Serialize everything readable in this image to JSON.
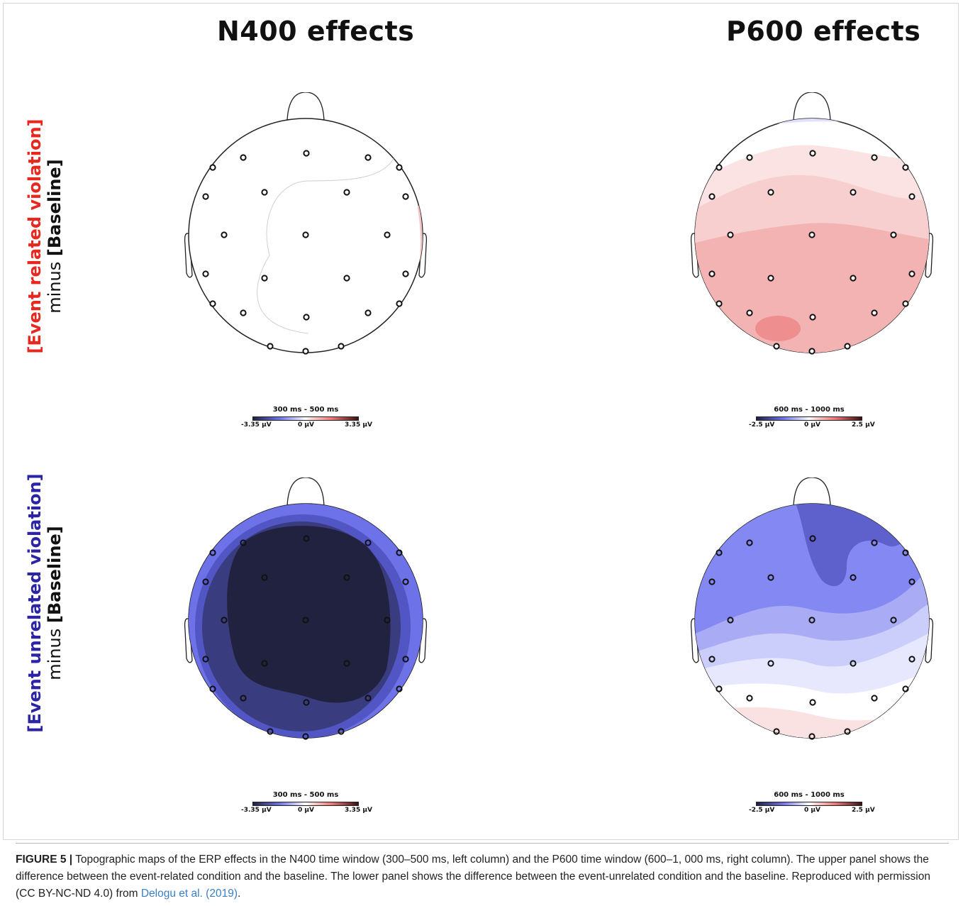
{
  "figure": {
    "columns": [
      {
        "title": "N400 effects"
      },
      {
        "title": "P600 effects"
      }
    ],
    "rows": [
      {
        "label_main": "[Event related violation]",
        "label_main_color": "#e8281e",
        "label_minus": "minus ",
        "label_baseline": "[Baseline]"
      },
      {
        "label_main": "[Event unrelated violation]",
        "label_main_color": "#2b24a6",
        "label_minus": "minus ",
        "label_baseline": "[Baseline]"
      }
    ],
    "colorbars": {
      "n400": {
        "range": "300 ms - 500 ms",
        "min": "-3.35 μV",
        "mid": "0 μV",
        "max": "3.35 μV"
      },
      "p600": {
        "range": "600 ms - 1000 ms",
        "min": "-2.5 μV",
        "mid": "0 μV",
        "max": "2.5 μV"
      }
    },
    "maps": [
      {
        "name": "related-n400",
        "fill": "#ffffff"
      },
      {
        "name": "related-p600",
        "fill": "#f6c9c8"
      },
      {
        "name": "unrelated-n400",
        "fill": "#22233f"
      },
      {
        "name": "unrelated-p600",
        "fill": "#8c8cf0"
      }
    ],
    "colors": {
      "deep_blue": "#1f2040",
      "blue": "#7b7ff0",
      "light_blue": "#c9cbfa",
      "red": "#f08a8a",
      "light_red": "#fbdcdc",
      "link": "#3b7fc4"
    }
  },
  "caption": {
    "label": "FIGURE 5 |",
    "text": " Topographic maps of the ERP effects in the N400 time window (300–500 ms, left column) and the P600 time window (600–1, 000 ms, right column). The upper panel shows the difference between the event-related condition and the baseline. The lower panel shows the difference between the event-unrelated condition and the baseline. Reproduced with permission (CC BY-NC-ND 4.0) from ",
    "citation": "Delogu et al. (2019)",
    "end": "."
  }
}
